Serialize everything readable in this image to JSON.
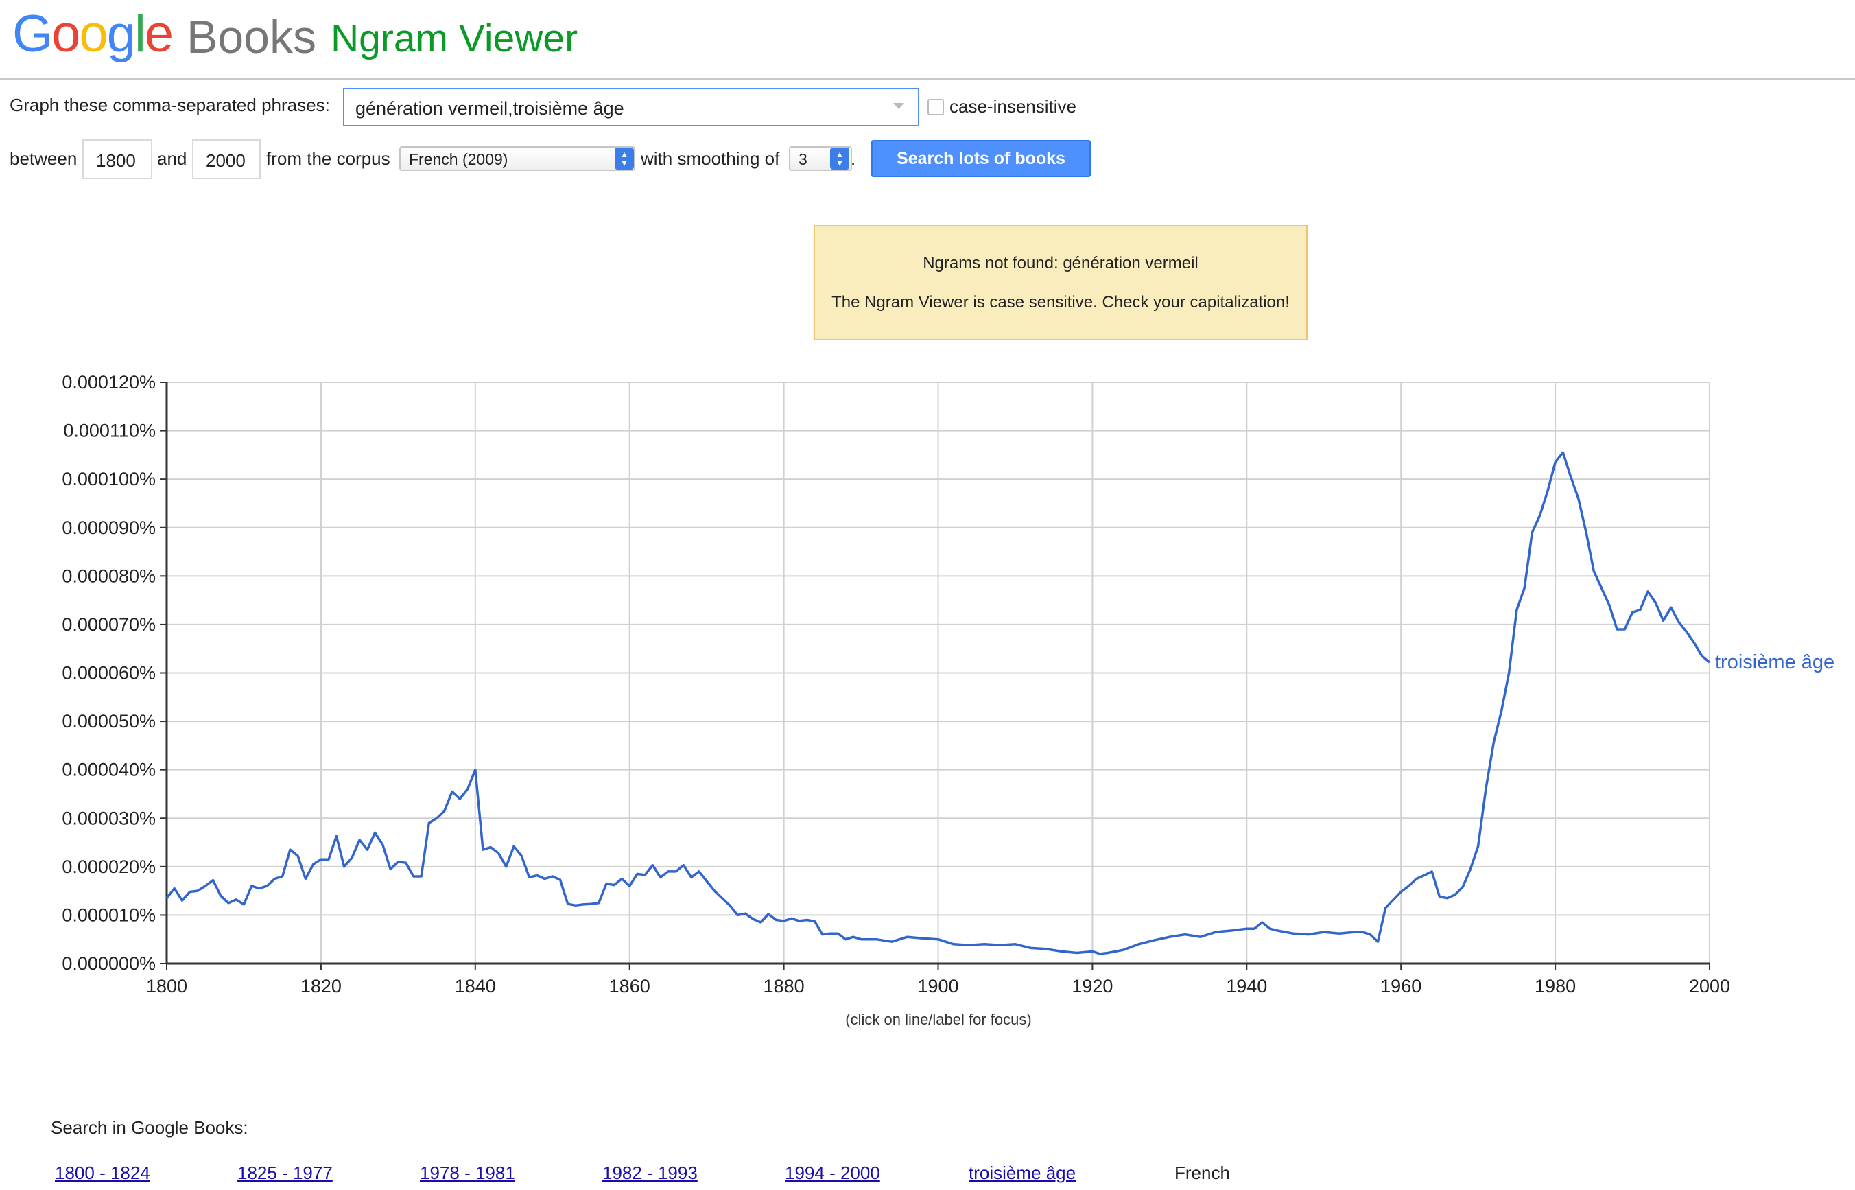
{
  "header": {
    "logo_google": "Google",
    "logo_books": "Books",
    "app_title": "Ngram Viewer",
    "google_colors": [
      "#4285F4",
      "#EA4335",
      "#FBBC05",
      "#4285F4",
      "#34A853",
      "#EA4335"
    ]
  },
  "form": {
    "phrases_label": "Graph these comma-separated phrases:",
    "phrases_value": "génération vermeil,troisième âge",
    "case_insensitive_label": "case-insensitive",
    "between_label": "between",
    "start_year": "1800",
    "and_label": "and",
    "end_year": "2000",
    "corpus_label": "from the corpus",
    "corpus_value": "French (2009)",
    "smoothing_label": "with smoothing of",
    "smoothing_value": "3",
    "period": ".",
    "search_button": "Search lots of books"
  },
  "notice": {
    "line1": "Ngrams not found: génération vermeil",
    "line2": "The Ngram Viewer is case sensitive. Check your capitalization!",
    "background": "#f9edbe",
    "border": "#f0c36d"
  },
  "chart_data": {
    "type": "line",
    "title": "",
    "xlabel": "",
    "ylabel": "",
    "xlim": [
      1800,
      2000
    ],
    "ylim": [
      0,
      0.00012
    ],
    "x_ticks": [
      "1800",
      "1820",
      "1840",
      "1860",
      "1880",
      "1900",
      "1920",
      "1940",
      "1960",
      "1980",
      "2000"
    ],
    "y_ticks": [
      "0.000000%",
      "0.000010%",
      "0.000020%",
      "0.000030%",
      "0.000040%",
      "0.000050%",
      "0.000060%",
      "0.000070%",
      "0.000080%",
      "0.000090%",
      "0.000100%",
      "0.000110%",
      "0.000120%"
    ],
    "grid": true,
    "legend": "end-of-line",
    "caption": "(click on line/label for focus)",
    "series": [
      {
        "name": "troisième âge",
        "color": "#3366cc",
        "x": [
          1800,
          1801,
          1802,
          1803,
          1804,
          1805,
          1806,
          1807,
          1808,
          1809,
          1810,
          1811,
          1812,
          1813,
          1814,
          1815,
          1816,
          1817,
          1818,
          1819,
          1820,
          1821,
          1822,
          1823,
          1824,
          1825,
          1826,
          1827,
          1828,
          1829,
          1830,
          1831,
          1832,
          1833,
          1834,
          1835,
          1836,
          1837,
          1838,
          1839,
          1840,
          1841,
          1842,
          1843,
          1844,
          1845,
          1846,
          1847,
          1848,
          1849,
          1850,
          1851,
          1852,
          1853,
          1854,
          1855,
          1856,
          1857,
          1858,
          1859,
          1860,
          1861,
          1862,
          1863,
          1864,
          1865,
          1866,
          1867,
          1868,
          1869,
          1870,
          1871,
          1872,
          1873,
          1874,
          1875,
          1876,
          1877,
          1878,
          1879,
          1880,
          1881,
          1882,
          1883,
          1884,
          1885,
          1886,
          1887,
          1888,
          1889,
          1890,
          1892,
          1894,
          1896,
          1898,
          1900,
          1902,
          1904,
          1906,
          1908,
          1910,
          1912,
          1914,
          1916,
          1918,
          1920,
          1921,
          1922,
          1924,
          1926,
          1928,
          1930,
          1932,
          1934,
          1936,
          1938,
          1940,
          1941,
          1942,
          1943,
          1944,
          1946,
          1948,
          1950,
          1952,
          1954,
          1955,
          1956,
          1957,
          1958,
          1960,
          1961,
          1962,
          1963,
          1964,
          1965,
          1966,
          1967,
          1968,
          1969,
          1970,
          1971,
          1972,
          1973,
          1974,
          1975,
          1976,
          1977,
          1978,
          1979,
          1980,
          1981,
          1982,
          1983,
          1984,
          1985,
          1986,
          1987,
          1988,
          1989,
          1990,
          1991,
          1992,
          1993,
          1994,
          1995,
          1996,
          1997,
          1998,
          1999,
          2000
        ],
        "y": [
          1.35e-05,
          1.55e-05,
          1.3e-05,
          1.48e-05,
          1.5e-05,
          1.6e-05,
          1.72e-05,
          1.4e-05,
          1.25e-05,
          1.32e-05,
          1.22e-05,
          1.6e-05,
          1.55e-05,
          1.6e-05,
          1.75e-05,
          1.8e-05,
          2.35e-05,
          2.22e-05,
          1.75e-05,
          2.05e-05,
          2.15e-05,
          2.15e-05,
          2.63e-05,
          2e-05,
          2.18e-05,
          2.55e-05,
          2.35e-05,
          2.7e-05,
          2.45e-05,
          1.95e-05,
          2.1e-05,
          2.08e-05,
          1.8e-05,
          1.8e-05,
          2.9e-05,
          3e-05,
          3.15e-05,
          3.55e-05,
          3.4e-05,
          3.6e-05,
          4e-05,
          2.35e-05,
          2.4e-05,
          2.28e-05,
          2e-05,
          2.42e-05,
          2.22e-05,
          1.78e-05,
          1.82e-05,
          1.75e-05,
          1.8e-05,
          1.73e-05,
          1.23e-05,
          1.2e-05,
          1.22e-05,
          1.23e-05,
          1.25e-05,
          1.65e-05,
          1.62e-05,
          1.75e-05,
          1.6e-05,
          1.85e-05,
          1.83e-05,
          2.03e-05,
          1.78e-05,
          1.9e-05,
          1.9e-05,
          2.03e-05,
          1.78e-05,
          1.9e-05,
          1.7e-05,
          1.5e-05,
          1.35e-05,
          1.2e-05,
          1e-05,
          1.03e-05,
          9.2e-06,
          8.5e-06,
          1.02e-05,
          9e-06,
          8.8e-06,
          9.3e-06,
          8.8e-06,
          9e-06,
          8.7e-06,
          6e-06,
          6.2e-06,
          6.2e-06,
          5e-06,
          5.5e-06,
          5e-06,
          5e-06,
          4.5e-06,
          5.5e-06,
          5.2e-06,
          5e-06,
          4e-06,
          3.8e-06,
          4e-06,
          3.8e-06,
          4e-06,
          3.2e-06,
          3e-06,
          2.5e-06,
          2.2e-06,
          2.5e-06,
          2e-06,
          2.2e-06,
          2.8e-06,
          4e-06,
          4.8e-06,
          5.5e-06,
          6e-06,
          5.5e-06,
          6.5e-06,
          6.8e-06,
          7.2e-06,
          7.2e-06,
          8.5e-06,
          7.2e-06,
          6.8e-06,
          6.2e-06,
          6e-06,
          6.5e-06,
          6.2e-06,
          6.5e-06,
          6.5e-06,
          6e-06,
          4.5e-06,
          1.15e-05,
          1.48e-05,
          1.6e-05,
          1.75e-05,
          1.82e-05,
          1.9e-05,
          1.38e-05,
          1.35e-05,
          1.42e-05,
          1.58e-05,
          1.95e-05,
          2.42e-05,
          3.6e-05,
          4.55e-05,
          5.2e-05,
          6e-05,
          7.3e-05,
          7.75e-05,
          8.9e-05,
          9.25e-05,
          9.75e-05,
          0.0001035,
          0.0001055,
          0.0001005,
          9.6e-05,
          8.9e-05,
          8.1e-05,
          7.75e-05,
          7.4e-05,
          6.9e-05,
          6.9e-05,
          7.25e-05,
          7.3e-05,
          7.68e-05,
          7.45e-05,
          7.08e-05,
          7.35e-05,
          7.05e-05,
          6.85e-05,
          6.62e-05,
          6.35e-05,
          6.22e-05
        ]
      }
    ]
  },
  "footer": {
    "title": "Search in Google Books:",
    "links": [
      "1800 - 1824",
      "1825 - 1977",
      "1978 - 1981",
      "1982 - 1993",
      "1994 - 2000",
      "troisième âge"
    ],
    "corpus": "French"
  }
}
